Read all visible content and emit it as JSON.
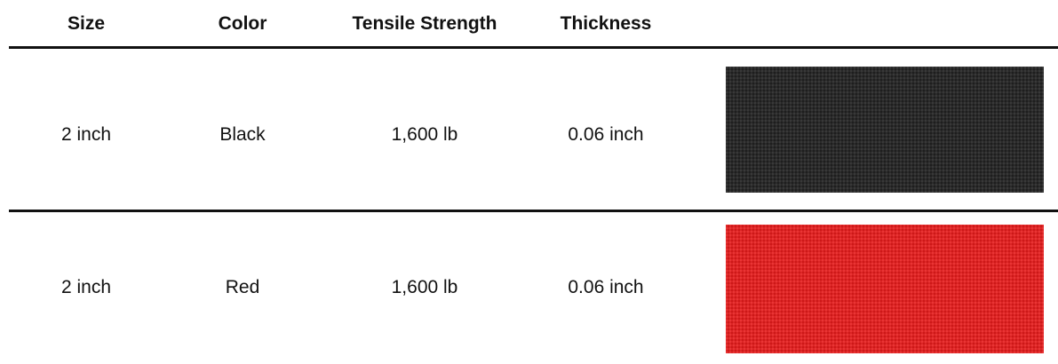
{
  "table": {
    "columns": [
      "Size",
      "Color",
      "Tensile Strength",
      "Thickness"
    ],
    "rows": [
      [
        "2 inch",
        "Black",
        "1,600 lb",
        "0.06 inch"
      ],
      [
        "2 inch",
        "Red",
        "1,600 lb",
        "0.06 inch"
      ]
    ]
  }
}
